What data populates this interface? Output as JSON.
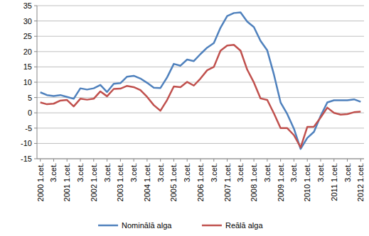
{
  "chart_data": {
    "type": "line",
    "categories": [
      "2000 1.cet.",
      null,
      "3.cet.",
      null,
      "2001 1.cet.",
      null,
      "3.cet.",
      null,
      "2002 1.cet.",
      null,
      "3.cet.",
      null,
      "2003 1.cet.",
      null,
      "3.cet.",
      null,
      "2004 1.cet.",
      null,
      "3.cet.",
      null,
      "2005 1.cet.",
      null,
      "3.cet.",
      null,
      "2006 1.cet.",
      null,
      "3.cet.",
      null,
      "2007 1.cet.",
      null,
      "3.cet.",
      null,
      "2008 1.cet.",
      null,
      "3.cet.",
      null,
      "2009 1.cet.",
      null,
      "3.cet.",
      null,
      "2010 1.cet.",
      null,
      "3.cet.",
      null,
      "2011 1.cet.",
      null,
      "3.cet.",
      null,
      "2012 1.cet."
    ],
    "series": [
      {
        "name": "Nominālā alga",
        "color": "#4f81bd",
        "values": [
          6.7,
          5.8,
          5.5,
          5.8,
          5.2,
          4.6,
          8.0,
          7.6,
          8.0,
          9.1,
          6.8,
          9.5,
          9.7,
          11.8,
          12.1,
          11.2,
          9.8,
          8.2,
          8.1,
          11.6,
          16.0,
          15.4,
          17.4,
          16.9,
          19.2,
          21.3,
          22.8,
          27.8,
          31.6,
          32.6,
          32.8,
          29.8,
          28.0,
          23.5,
          20.4,
          12.5,
          3.4,
          -0.4,
          -5.2,
          -11.8,
          -8.2,
          -6.2,
          -1.0,
          3.4,
          4.1,
          4.1,
          4.1,
          4.4,
          3.6
        ]
      },
      {
        "name": "Reālā alga",
        "color": "#c0504d",
        "values": [
          3.4,
          2.8,
          3.0,
          4.0,
          4.2,
          2.1,
          4.6,
          4.3,
          4.6,
          7.0,
          5.4,
          7.8,
          7.9,
          8.8,
          8.4,
          7.4,
          5.2,
          2.5,
          0.7,
          4.2,
          8.6,
          8.4,
          10.1,
          8.9,
          11.2,
          13.9,
          15.0,
          20.3,
          22.0,
          22.2,
          20.3,
          14.1,
          9.9,
          4.7,
          4.2,
          -0.2,
          -5.0,
          -5.0,
          -7.3,
          -11.3,
          -4.6,
          -4.5,
          -1.5,
          1.7,
          0.0,
          -0.6,
          -0.4,
          0.2,
          0.4
        ]
      }
    ],
    "ylim": [
      -15,
      35
    ],
    "yticks": [
      -15,
      -10,
      -5,
      0,
      5,
      10,
      15,
      20,
      25,
      30,
      35
    ],
    "grid": true,
    "legend": "bottom"
  }
}
